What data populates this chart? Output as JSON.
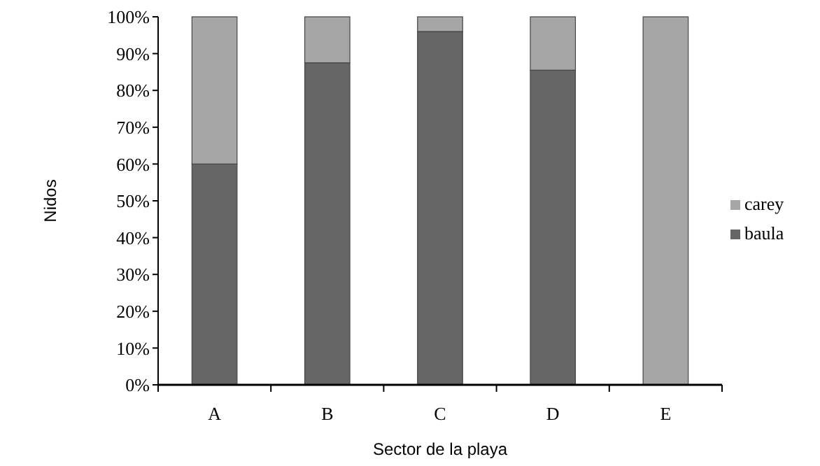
{
  "chart_data": {
    "type": "bar",
    "stacked": true,
    "xlabel": "Sector de la playa",
    "ylabel": "Nidos",
    "categories": [
      "A",
      "B",
      "C",
      "D",
      "E"
    ],
    "series": [
      {
        "name": "baula",
        "color": "#666666",
        "values": [
          60,
          87.5,
          96,
          85.5,
          0
        ]
      },
      {
        "name": "carey",
        "color": "#a6a6a6",
        "values": [
          40,
          12.5,
          4,
          14.5,
          100
        ]
      }
    ],
    "ylim": [
      0,
      100
    ],
    "yticks": [
      {
        "value": 0,
        "label": "0%"
      },
      {
        "value": 10,
        "label": "10%"
      },
      {
        "value": 20,
        "label": "20%"
      },
      {
        "value": 30,
        "label": "30%"
      },
      {
        "value": 40,
        "label": "40%"
      },
      {
        "value": 50,
        "label": "50%"
      },
      {
        "value": 60,
        "label": "60%"
      },
      {
        "value": 70,
        "label": "70%"
      },
      {
        "value": 80,
        "label": "80%"
      },
      {
        "value": 90,
        "label": "90%"
      },
      {
        "value": 100,
        "label": "100%"
      }
    ],
    "legend": "right",
    "grid": false
  }
}
